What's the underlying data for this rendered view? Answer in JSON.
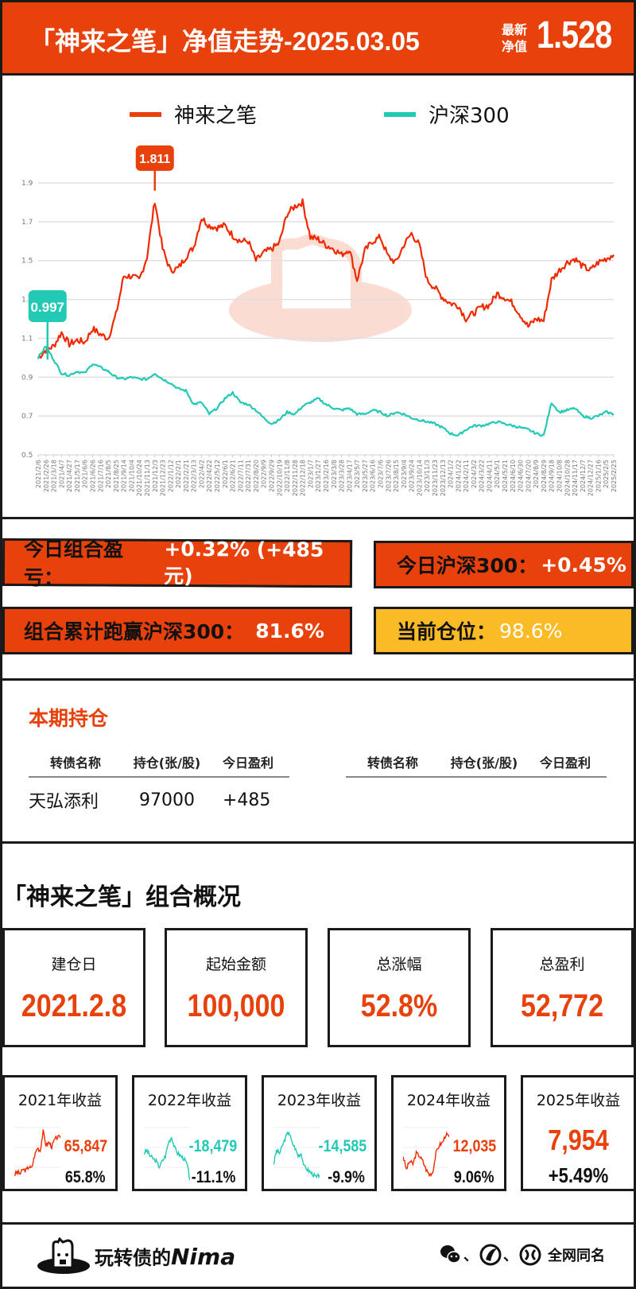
{
  "header": {
    "title": "「神来之笔」净值走势-2025.03.05",
    "nav_label_line1": "最新",
    "nav_label_line2": "净值",
    "nav_value": "1.528"
  },
  "colors": {
    "accent": "#e8410b",
    "portfolio_line": "#f02a00",
    "index_line": "#22c9b4",
    "yellow": "#fbbb26",
    "teal_tag": "#22c9b4"
  },
  "chart_data": {
    "type": "line",
    "title": "「神来之笔」净值走势-2025.03.05",
    "xlabel": "",
    "ylabel": "",
    "ylim": [
      0.5,
      1.9
    ],
    "yticks": [
      "0.5",
      "0.7",
      "0.9",
      "1.1",
      "1.3",
      "1.5",
      "1.7",
      "1.9"
    ],
    "grid": true,
    "legend_position": "top",
    "x_tick_labels": [
      "2021/2/6",
      "2021/2/26",
      "2021/3/18",
      "2021/4/7",
      "2021/4/27",
      "2021/5/17",
      "2021/6/6",
      "2021/6/26",
      "2021/7/16",
      "2021/8/5",
      "2021/8/25",
      "2021/9/14",
      "2021/10/4",
      "2021/10/24",
      "2021/11/13",
      "2021/12/3",
      "2021/12/23",
      "2022/1/12",
      "2022/2/1",
      "2022/2/21",
      "2022/3/13",
      "2022/4/2",
      "2022/4/22",
      "2022/5/12",
      "2022/6/1",
      "2022/6/21",
      "2022/7/11",
      "2022/7/31",
      "2022/8/20",
      "2022/9/9",
      "2022/9/29",
      "2022/10/19",
      "2022/11/8",
      "2022/11/28",
      "2022/12/18",
      "2023/1/7",
      "2023/1/27",
      "2023/2/16",
      "2023/3/8",
      "2023/3/28",
      "2023/4/17",
      "2023/5/7",
      "2023/5/27",
      "2023/6/16",
      "2023/7/6",
      "2023/7/26",
      "2023/8/15",
      "2023/9/4",
      "2023/9/24",
      "2023/10/14",
      "2023/11/3",
      "2023/11/23",
      "2023/12/13",
      "2024/1/2",
      "2024/1/22",
      "2024/2/11",
      "2024/3/2",
      "2024/3/22",
      "2024/4/11",
      "2024/5/1",
      "2024/5/21",
      "2024/6/10",
      "2024/6/30",
      "2024/7/20",
      "2024/8/9",
      "2024/8/29",
      "2024/9/18",
      "2024/10/8",
      "2024/10/28",
      "2024/11/17",
      "2024/12/7",
      "2024/12/27",
      "2025/1/16",
      "2025/2/5",
      "2025/2/25"
    ],
    "series": [
      {
        "name": "神来之笔",
        "color": "#f02a00",
        "values": [
          1.0,
          1.04,
          1.06,
          1.13,
          1.07,
          1.09,
          1.08,
          1.15,
          1.12,
          1.1,
          1.22,
          1.42,
          1.42,
          1.4,
          1.52,
          1.81,
          1.56,
          1.45,
          1.46,
          1.52,
          1.57,
          1.72,
          1.68,
          1.67,
          1.68,
          1.63,
          1.6,
          1.6,
          1.5,
          1.54,
          1.56,
          1.59,
          1.74,
          1.78,
          1.8,
          1.62,
          1.61,
          1.58,
          1.56,
          1.53,
          1.56,
          1.4,
          1.55,
          1.6,
          1.62,
          1.52,
          1.49,
          1.58,
          1.64,
          1.58,
          1.4,
          1.36,
          1.31,
          1.28,
          1.27,
          1.2,
          1.23,
          1.26,
          1.27,
          1.33,
          1.31,
          1.28,
          1.22,
          1.16,
          1.2,
          1.19,
          1.4,
          1.45,
          1.49,
          1.51,
          1.47,
          1.45,
          1.49,
          1.51,
          1.53
        ]
      },
      {
        "name": "沪深300",
        "color": "#22c9b4",
        "values": [
          1.0,
          1.06,
          0.99,
          0.92,
          0.91,
          0.93,
          0.92,
          0.97,
          0.95,
          0.93,
          0.9,
          0.89,
          0.9,
          0.89,
          0.89,
          0.92,
          0.89,
          0.87,
          0.84,
          0.83,
          0.76,
          0.77,
          0.71,
          0.74,
          0.79,
          0.82,
          0.77,
          0.76,
          0.73,
          0.69,
          0.66,
          0.68,
          0.72,
          0.71,
          0.75,
          0.77,
          0.79,
          0.76,
          0.74,
          0.73,
          0.74,
          0.71,
          0.71,
          0.73,
          0.72,
          0.7,
          0.72,
          0.71,
          0.69,
          0.68,
          0.67,
          0.66,
          0.64,
          0.61,
          0.6,
          0.63,
          0.65,
          0.65,
          0.66,
          0.67,
          0.66,
          0.65,
          0.64,
          0.63,
          0.61,
          0.6,
          0.77,
          0.72,
          0.73,
          0.74,
          0.7,
          0.69,
          0.7,
          0.72,
          0.71
        ]
      }
    ],
    "annotations": [
      {
        "series": "神来之笔",
        "label": "1.811",
        "note": "peak"
      },
      {
        "series": "沪深300",
        "label": "0.997"
      }
    ]
  },
  "legend": {
    "portfolio": "神来之笔",
    "index": "沪深300"
  },
  "annotations": {
    "peak": "1.811",
    "start": "0.997"
  },
  "stats": {
    "today_pnl_label": "今日组合盈亏：",
    "today_pnl_value": "+0.32% (+485元)",
    "today_index_label": "今日沪深300：",
    "today_index_value": "+0.45%",
    "outperform_label": "组合累计跑赢沪深300：",
    "outperform_value": "81.6%",
    "position_label": "当前仓位：",
    "position_value": "98.6%"
  },
  "holdings": {
    "title": "本期持仓",
    "columns": [
      "转债名称",
      "持仓(张/股)",
      "今日盈利"
    ],
    "left_rows": [
      {
        "name": "天弘添利",
        "qty": "97000",
        "profit": "+485"
      }
    ],
    "right_rows": []
  },
  "overview": {
    "title": "「神来之笔」组合概况",
    "cards": [
      {
        "label": "建仓日",
        "value": "2021.2.8"
      },
      {
        "label": "起始金额",
        "value": "100,000"
      },
      {
        "label": "总涨幅",
        "value": "52.8%"
      },
      {
        "label": "总盈利",
        "value": "52,772"
      }
    ]
  },
  "yearly": [
    {
      "label": "2021年收益",
      "amount": "65,847",
      "pct": "65.8%",
      "color": "#e8410b",
      "spark": [
        0.2,
        0.25,
        0.22,
        0.3,
        0.28,
        0.35,
        0.32,
        0.55,
        0.7,
        0.65,
        1.0,
        0.75,
        0.8,
        0.72,
        0.85,
        0.9,
        0.88
      ]
    },
    {
      "label": "2022年收益",
      "amount": "-18,479",
      "pct": "-11.1%",
      "color": "#22c9b4",
      "spark": [
        0.6,
        0.65,
        0.55,
        0.5,
        0.45,
        0.35,
        0.45,
        0.55,
        0.8,
        0.9,
        0.7,
        0.6,
        0.55,
        0.5,
        0.4,
        0.1
      ]
    },
    {
      "label": "2023年收益",
      "amount": "-14,585",
      "pct": "-9.9%",
      "color": "#22c9b4",
      "spark": [
        0.4,
        0.65,
        0.6,
        0.75,
        0.9,
        1.0,
        0.8,
        0.7,
        0.55,
        0.6,
        0.35,
        0.3,
        0.25,
        0.2,
        0.15,
        0.2
      ]
    },
    {
      "label": "2024年收益",
      "amount": "12,035",
      "pct": "9.06%",
      "color": "#e8410b",
      "spark": [
        0.55,
        0.3,
        0.45,
        0.4,
        0.6,
        0.55,
        0.45,
        0.3,
        0.2,
        0.25,
        0.6,
        0.75,
        0.8,
        0.95,
        0.9
      ]
    },
    {
      "label": "2025年收益",
      "amount": "7,954",
      "pct": "+5.49%",
      "color": "#e8410b"
    }
  ],
  "footer": {
    "brand_cn": "玩转债的",
    "brand_en": "Nima",
    "platforms_text": "全网同名"
  }
}
